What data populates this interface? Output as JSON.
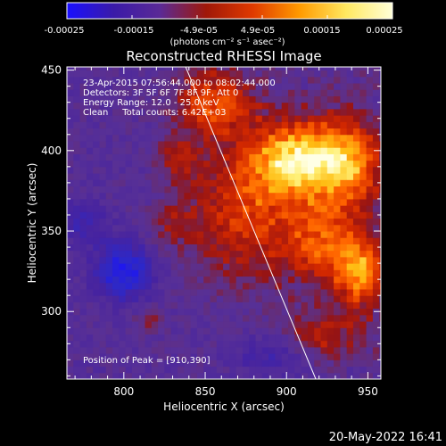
{
  "chart_data": {
    "type": "heatmap",
    "title": "Reconstructed RHESSI Image",
    "xlabel": "Heliocentric X (arcsec)",
    "ylabel": "Heliocentric Y (arcsec)",
    "xlim": [
      765,
      958
    ],
    "ylim": [
      258,
      452
    ],
    "x_ticks": [
      800,
      850,
      900,
      950
    ],
    "y_ticks": [
      300,
      350,
      400,
      450
    ],
    "grid": false,
    "colorbar": {
      "label": "(photons cm⁻² s⁻¹ asec⁻²)",
      "range": [
        -0.00025,
        0.00025
      ],
      "ticks": [
        "-0.00025",
        "-0.00015",
        "-4.9e-05",
        "4.9e-05",
        "0.00015",
        "0.00025"
      ],
      "colors": [
        "#1a10ff",
        "#3a1aa8",
        "#5a2a96",
        "#a01808",
        "#e03a00",
        "#ff9a00",
        "#ffe860",
        "#ffffd8"
      ]
    },
    "annotations": [
      "23-Apr-2015 07:56:44.000 to 08:02:44.000",
      "Detectors: 3F 5F 6F 7F 8F 9F, Att 0",
      "Energy Range: 12.0 - 25.0 keV",
      "Clean     Total counts: 6.42E+03"
    ],
    "peak_label": "Position of Peak = [910,390]",
    "limb_line": [
      [
        838,
        452
      ],
      [
        918,
        258
      ]
    ],
    "hotspots": [
      {
        "x": 910,
        "y": 395,
        "amp": 1.0,
        "sx": 22,
        "sy": 16
      },
      {
        "x": 940,
        "y": 390,
        "amp": 0.55,
        "sx": 14,
        "sy": 22
      },
      {
        "x": 945,
        "y": 325,
        "amp": 0.8,
        "sx": 12,
        "sy": 16
      },
      {
        "x": 875,
        "y": 360,
        "amp": 0.55,
        "sx": 25,
        "sy": 30
      },
      {
        "x": 855,
        "y": 430,
        "amp": 0.6,
        "sx": 18,
        "sy": 14
      },
      {
        "x": 835,
        "y": 395,
        "amp": 0.35,
        "sx": 10,
        "sy": 10
      },
      {
        "x": 920,
        "y": 345,
        "amp": 0.5,
        "sx": 15,
        "sy": 18
      },
      {
        "x": 920,
        "y": 285,
        "amp": 0.35,
        "sx": 22,
        "sy": 10
      },
      {
        "x": 830,
        "y": 355,
        "amp": 0.25,
        "sx": 10,
        "sy": 10
      },
      {
        "x": 815,
        "y": 295,
        "amp": 0.25,
        "sx": 6,
        "sy": 6
      }
    ],
    "coldspots": [
      {
        "x": 800,
        "y": 325,
        "amp": 0.7,
        "sx": 12,
        "sy": 12
      },
      {
        "x": 775,
        "y": 355,
        "amp": 0.3,
        "sx": 10,
        "sy": 10
      },
      {
        "x": 890,
        "y": 275,
        "amp": 0.3,
        "sx": 15,
        "sy": 10
      }
    ]
  },
  "footer": {
    "timestamp": "20-May-2022 16:41"
  }
}
